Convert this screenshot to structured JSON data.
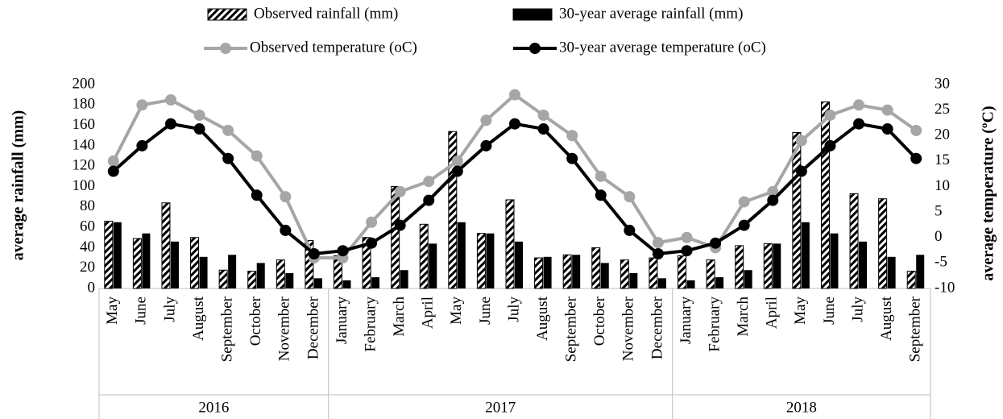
{
  "chart_data": {
    "type": "bar-line",
    "ylabel": "average rainfall (mm)",
    "y2label": "average temperature (ºC)",
    "groups": [
      {
        "name": "2016",
        "categories": [
          "May",
          "June",
          "July",
          "August",
          "September",
          "October",
          "November",
          "December"
        ]
      },
      {
        "name": "2017",
        "categories": [
          "January",
          "February",
          "March",
          "April",
          "May",
          "June",
          "July",
          "August",
          "September",
          "October",
          "November",
          "December"
        ]
      },
      {
        "name": "2018",
        "categories": [
          "January",
          "February",
          "March",
          "April",
          "May",
          "June",
          "July",
          "August",
          "September"
        ]
      }
    ],
    "series": [
      {
        "name": "Observed rainfall (mm)",
        "type": "bar",
        "color": "#000000",
        "pattern": "diagonal-stripe",
        "values": [
          66,
          49,
          84,
          50,
          18,
          17,
          28,
          47,
          32,
          50,
          100,
          63,
          154,
          54,
          87,
          30,
          33,
          40,
          28,
          30,
          32,
          28,
          42,
          44,
          153,
          183,
          93,
          88,
          17
        ]
      },
      {
        "name": "30-year average rainfall (mm)",
        "type": "bar",
        "color": "#000000",
        "values": [
          65,
          54,
          46,
          31,
          33,
          25,
          15,
          10,
          8,
          11,
          18,
          44,
          65,
          54,
          46,
          31,
          33,
          25,
          15,
          10,
          8,
          11,
          18,
          44,
          65,
          54,
          46,
          31,
          33
        ]
      },
      {
        "name": "Observed temperature (oC)",
        "type": "line",
        "axis": "y2",
        "color": "#a6a6a6",
        "values": [
          15,
          26,
          27,
          24,
          21,
          16,
          8,
          -4,
          -4,
          3,
          9,
          11,
          15,
          23,
          28,
          24,
          20,
          12,
          8,
          -1,
          0,
          -2,
          7,
          9,
          19,
          24,
          26,
          25,
          21
        ]
      },
      {
        "name": "30-year average temperature (oC)",
        "type": "line",
        "axis": "y2",
        "color": "#000000",
        "values": [
          13,
          18,
          22.3,
          21.3,
          15.5,
          8.3,
          1.4,
          -3.2,
          -2.6,
          -1.1,
          2.4,
          7.3,
          13,
          18,
          22.3,
          21.3,
          15.5,
          8.3,
          1.4,
          -3.2,
          -2.6,
          -1.1,
          2.4,
          7.3,
          13,
          18,
          22.3,
          21.3,
          15.5
        ]
      }
    ],
    "ylim": [
      0,
      200
    ],
    "yticks": [
      0,
      20,
      40,
      60,
      80,
      100,
      120,
      140,
      160,
      180,
      200
    ],
    "y2lim": [
      -10,
      30
    ],
    "y2ticks": [
      -10,
      -5,
      0,
      5,
      10,
      15,
      20,
      25,
      30
    ],
    "legend": "top"
  }
}
